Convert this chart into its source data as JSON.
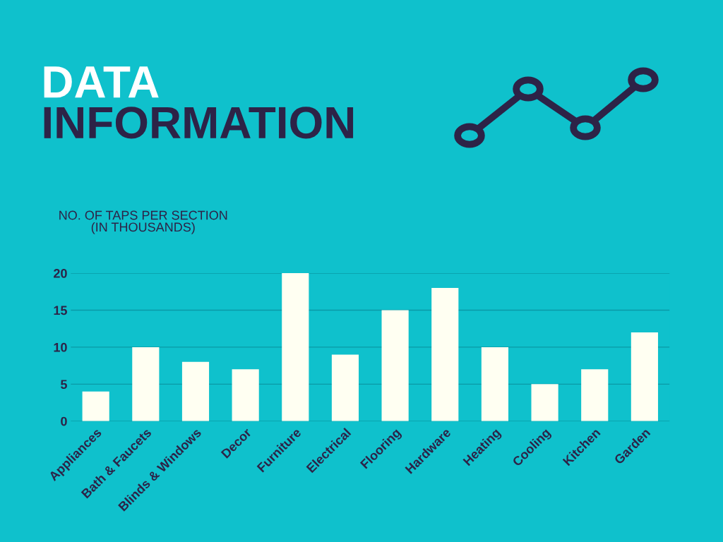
{
  "chart_data": {
    "type": "bar",
    "title": "DATA",
    "subtitle": "INFORMATION",
    "ylabel": "NO. OF TAPS PER SECTION\n(IN THOUSANDS)",
    "categories": [
      "Appliances",
      "Bath & Faucets",
      "Blinds & Windows",
      "Decor",
      "Furniture",
      "Electrical",
      "Flooring",
      "Hardware",
      "Heating",
      "Cooling",
      "Kitchen",
      "Garden"
    ],
    "values": [
      4,
      10,
      8,
      7,
      20,
      9,
      15,
      18,
      10,
      5,
      7,
      12
    ],
    "color": "#fffff2",
    "ylim": [
      0,
      20
    ],
    "yticks": [
      0,
      5,
      10,
      15,
      20
    ],
    "grid": "y",
    "legend": false
  }
}
